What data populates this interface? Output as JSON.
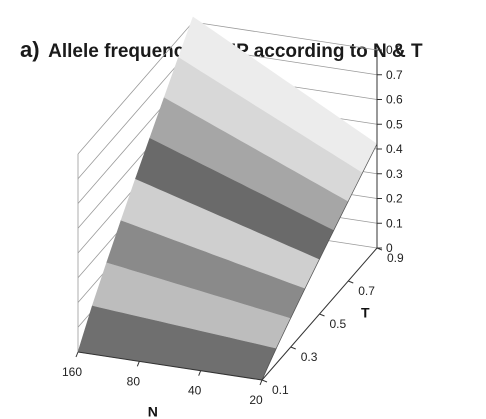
{
  "panel_label": "a)",
  "chart_data": {
    "type": "surface",
    "title": "Allele frequency in NP according to N & T",
    "x_axis": {
      "label": "N",
      "ticks": [
        "160",
        "80",
        "40",
        "20"
      ]
    },
    "y_axis": {
      "label": "T",
      "ticks": [
        "0.1",
        "0.3",
        "0.5",
        "0.7",
        "0.9"
      ]
    },
    "z_axis": {
      "label": "",
      "ticks": [
        "0",
        "0.1",
        "0.2",
        "0.3",
        "0.4",
        "0.5",
        "0.6",
        "0.7",
        "0.8"
      ],
      "zlim": [
        0,
        0.8
      ]
    },
    "grid": true,
    "band_colors": [
      "#6f6f6f",
      "#bdbdbd",
      "#8a8a8a",
      "#cfcfcf",
      "#6a6a6a",
      "#a6a6a6",
      "#d8d8d8",
      "#ececec"
    ],
    "surface_z_at_T_edges": {
      "T_values": [
        "0.1",
        "0.9"
      ],
      "N_values": [
        "160",
        "20"
      ],
      "z": [
        [
          0.0,
          0.0
        ],
        [
          0.82,
          0.42
        ]
      ]
    }
  }
}
